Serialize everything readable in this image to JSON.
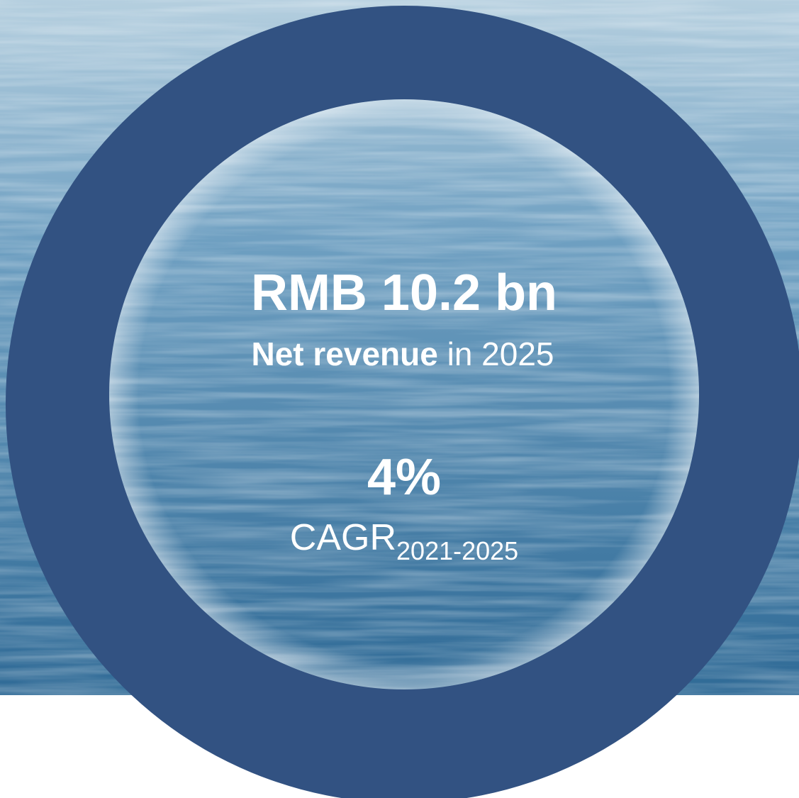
{
  "headline": {
    "value": "RMB 10.2 bn",
    "label_bold": "Net revenue",
    "label_rest": "in 2025"
  },
  "growth": {
    "value": "4%",
    "label": "CAGR",
    "period": "2021-2025"
  }
}
